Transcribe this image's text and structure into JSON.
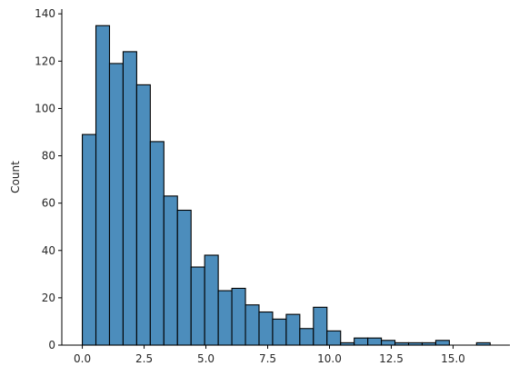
{
  "chart_data": {
    "type": "bar",
    "subtype": "histogram",
    "title": "",
    "xlabel": "",
    "ylabel": "Count",
    "xlim": [
      -0.83,
      17.3
    ],
    "ylim": [
      0,
      142
    ],
    "bin_width": 0.55,
    "bin_start": 0.0,
    "counts": [
      89,
      135,
      119,
      124,
      110,
      86,
      63,
      57,
      33,
      38,
      23,
      24,
      17,
      14,
      11,
      13,
      7,
      16,
      6,
      1,
      3,
      3,
      2,
      1,
      1,
      1,
      2,
      0,
      0,
      1
    ],
    "x_ticks": [
      0,
      2.5,
      5,
      7.5,
      10,
      12.5,
      15
    ],
    "x_tick_labels": [
      "0.0",
      "2.5",
      "5.0",
      "7.5",
      "10.0",
      "12.5",
      "15.0"
    ],
    "y_ticks": [
      0,
      20,
      40,
      60,
      80,
      100,
      120,
      140
    ],
    "y_tick_labels": [
      "0",
      "20",
      "40",
      "60",
      "80",
      "100",
      "120",
      "140"
    ],
    "grid": false,
    "bar_color": "#4c8dbc",
    "edge_color": "#000000"
  }
}
